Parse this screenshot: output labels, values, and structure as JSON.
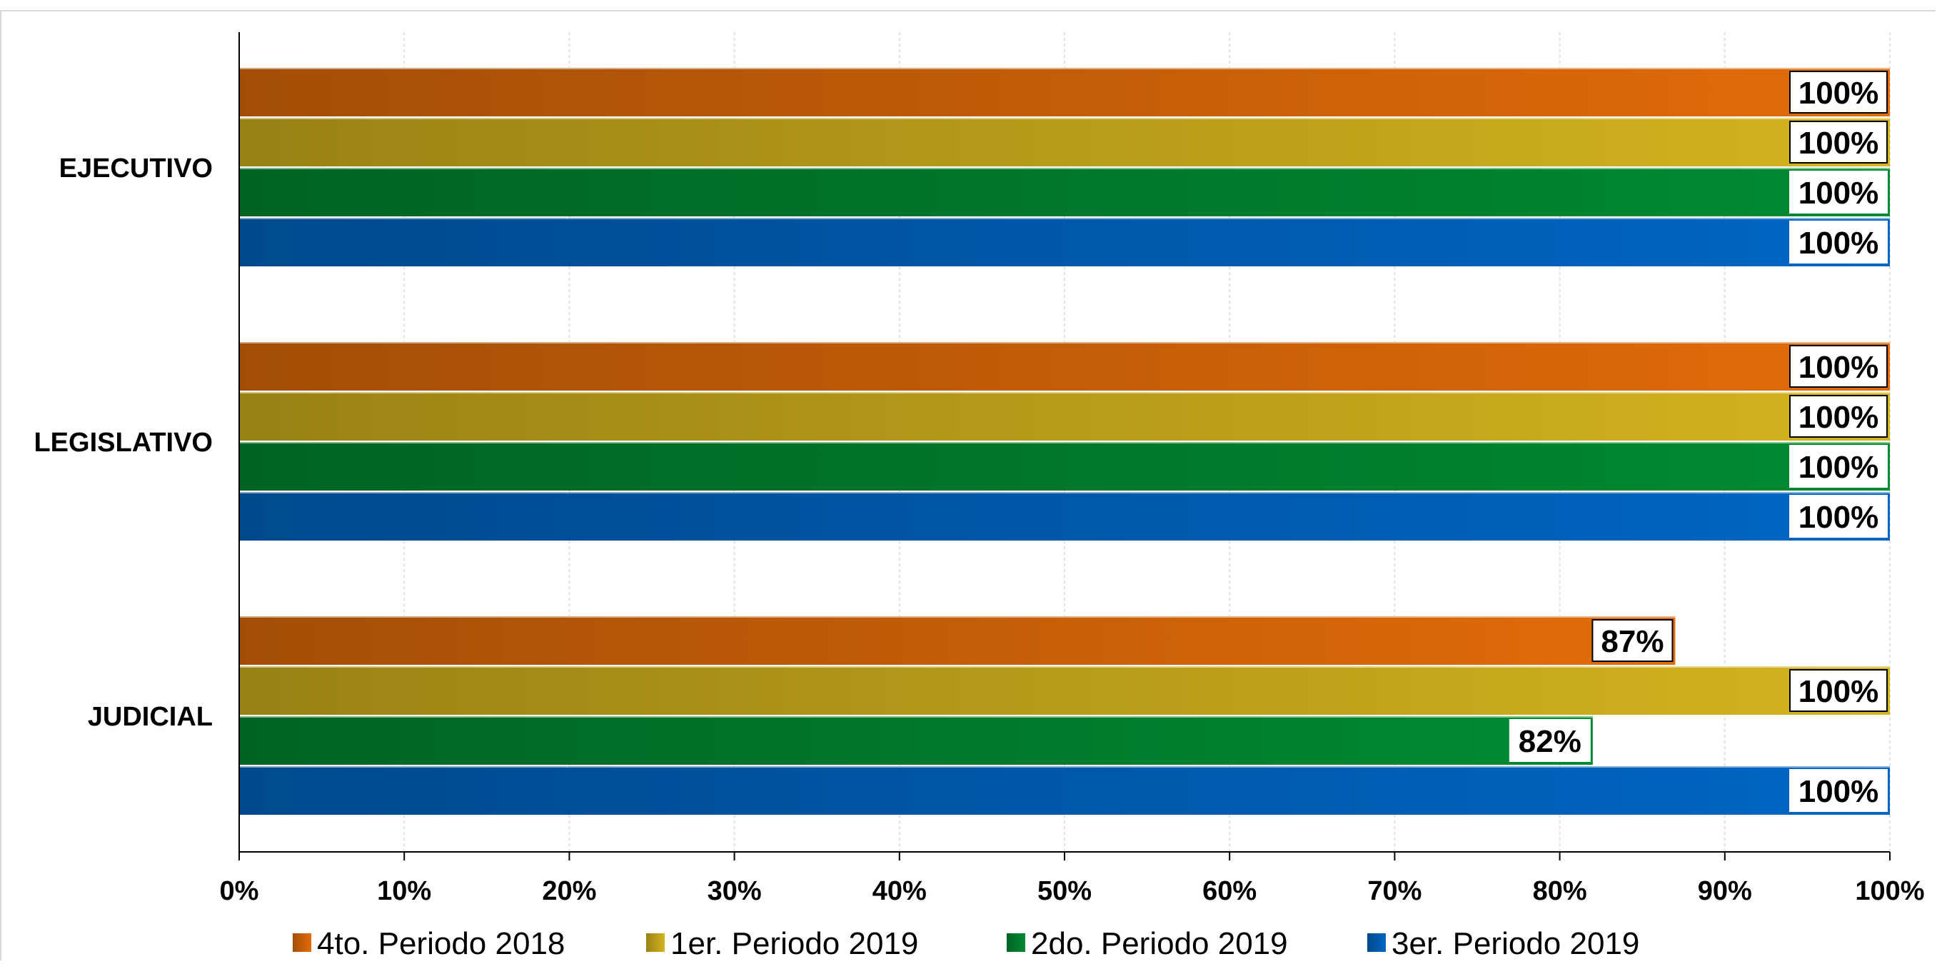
{
  "chart_data": {
    "type": "bar",
    "orientation": "horizontal",
    "categories": [
      "EJECUTIVO",
      "LEGISLATIVO",
      "JUDICIAL"
    ],
    "series": [
      {
        "name": "4to. Periodo 2018",
        "values": [
          100,
          100,
          87
        ],
        "color": "#e36c0a"
      },
      {
        "name": "1er. Periodo 2019",
        "values": [
          100,
          100,
          100
        ],
        "color": "#d4b41f"
      },
      {
        "name": "2do. Periodo 2019",
        "values": [
          100,
          100,
          82
        ],
        "color": "#008a32"
      },
      {
        "name": "3er. Periodo 2019",
        "values": [
          100,
          100,
          100
        ],
        "color": "#0066c4"
      }
    ],
    "data_labels": [
      [
        "100%",
        "100%",
        "87%"
      ],
      [
        "100%",
        "100%",
        "100%"
      ],
      [
        "100%",
        "100%",
        "82%"
      ],
      [
        "100%",
        "100%",
        "100%"
      ]
    ],
    "xlim": [
      0,
      100
    ],
    "x_ticks": [
      0,
      10,
      20,
      30,
      40,
      50,
      60,
      70,
      80,
      90,
      100
    ],
    "x_tick_labels": [
      "0%",
      "10%",
      "20%",
      "30%",
      "40%",
      "50%",
      "60%",
      "70%",
      "80%",
      "90%",
      "100%"
    ],
    "grid": true,
    "legend": "bottom"
  }
}
